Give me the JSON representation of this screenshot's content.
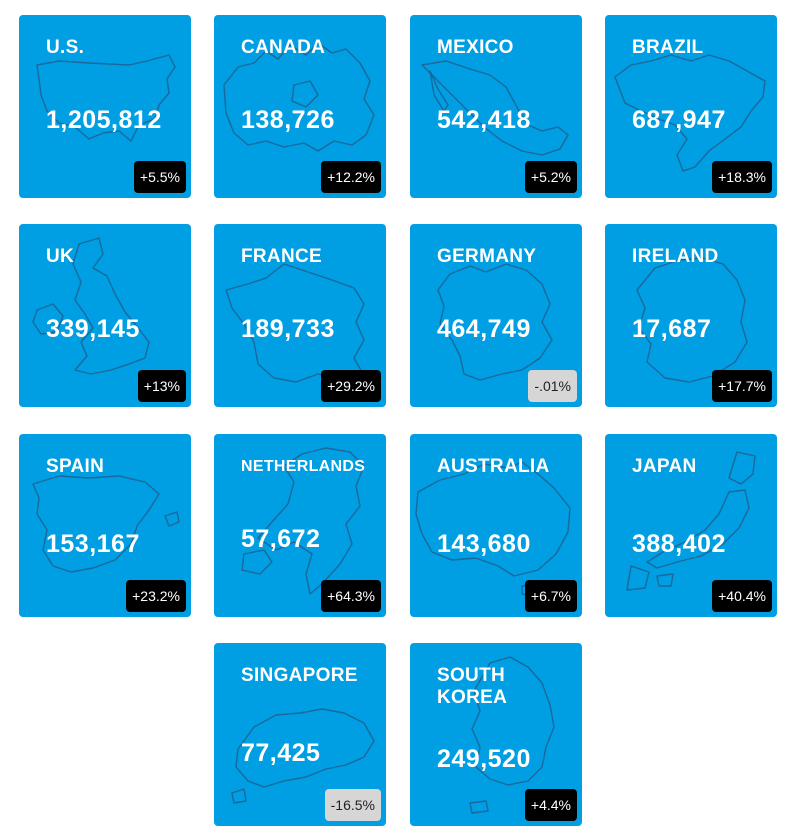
{
  "tiles": [
    {
      "country": "U.S.",
      "value": "1,205,812",
      "change": "+5.5%",
      "map_icon": "usa-map-icon",
      "trend": "positive"
    },
    {
      "country": "CANADA",
      "value": "138,726",
      "change": "+12.2%",
      "map_icon": "canada-map-icon",
      "trend": "positive"
    },
    {
      "country": "MEXICO",
      "value": "542,418",
      "change": "+5.2%",
      "map_icon": "mexico-map-icon",
      "trend": "positive"
    },
    {
      "country": "BRAZIL",
      "value": "687,947",
      "change": "+18.3%",
      "map_icon": "brazil-map-icon",
      "trend": "positive"
    },
    {
      "country": "UK",
      "value": "339,145",
      "change": "+13%",
      "map_icon": "uk-map-icon",
      "trend": "positive"
    },
    {
      "country": "FRANCE",
      "value": "189,733",
      "change": "+29.2%",
      "map_icon": "france-map-icon",
      "trend": "positive"
    },
    {
      "country": "GERMANY",
      "value": "464,749",
      "change": "-.01%",
      "map_icon": "germany-map-icon",
      "trend": "negative"
    },
    {
      "country": "IRELAND",
      "value": "17,687",
      "change": "+17.7%",
      "map_icon": "ireland-map-icon",
      "trend": "positive"
    },
    {
      "country": "SPAIN",
      "value": "153,167",
      "change": "+23.2%",
      "map_icon": "spain-map-icon",
      "trend": "positive"
    },
    {
      "country": "NETHERLANDS",
      "value": "57,672",
      "change": "+64.3%",
      "map_icon": "netherlands-map-icon",
      "trend": "positive"
    },
    {
      "country": "AUSTRALIA",
      "value": "143,680",
      "change": "+6.7%",
      "map_icon": "australia-map-icon",
      "trend": "positive"
    },
    {
      "country": "JAPAN",
      "value": "388,402",
      "change": "+40.4%",
      "map_icon": "japan-map-icon",
      "trend": "positive"
    },
    {
      "country": "SINGAPORE",
      "value": "77,425",
      "change": "-16.5%",
      "map_icon": "singapore-map-icon",
      "trend": "negative"
    },
    {
      "country": "SOUTH KOREA",
      "value": "249,520",
      "change": "+4.4%",
      "map_icon": "south-korea-map-icon",
      "trend": "positive"
    }
  ],
  "colors": {
    "tile_background": "#009ee2",
    "map_outline": "#1f5f8f",
    "text": "#ffffff",
    "positive_badge_bg": "#000000",
    "negative_badge_bg": "#d6d6d6"
  }
}
